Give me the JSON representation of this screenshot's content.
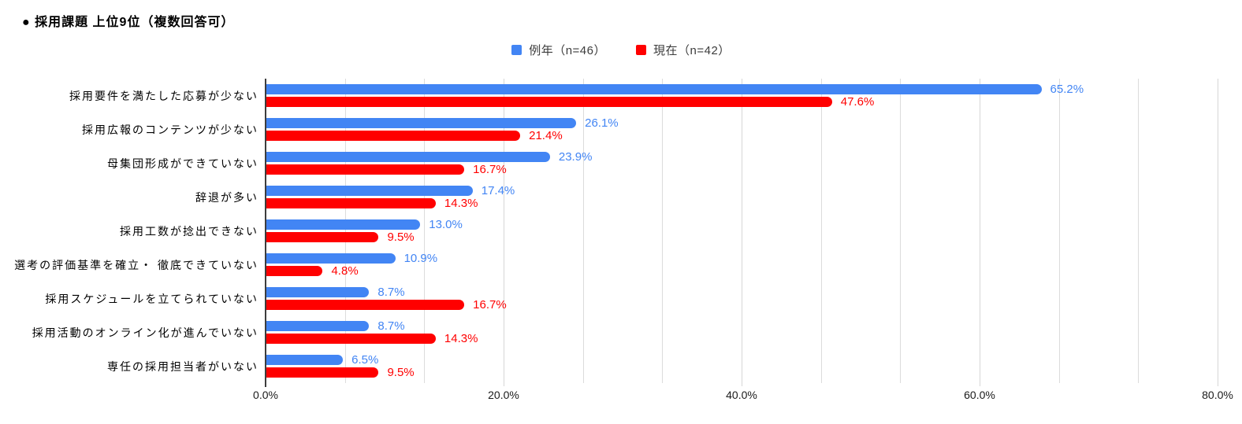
{
  "title": "● 採用課題 上位9位（複数回答可）",
  "legend": [
    {
      "label": "例年（n=46）",
      "color": "#4285F4"
    },
    {
      "label": "現在（n=42）",
      "color": "#FF0000"
    }
  ],
  "chart_data": {
    "type": "bar",
    "orientation": "horizontal",
    "title": "採用課題 上位9位（複数回答可）",
    "categories": [
      "採用要件を満たした応募が少ない",
      "採用広報のコンテンツが少ない",
      "母集団形成ができていない",
      "辞退が多い",
      "採用工数が捻出できない",
      "選考の評価基準を確立・ 徹底できていない",
      "採用スケジュールを立てられていない",
      "採用活動のオンライン化が進んでいない",
      "専任の採用担当者がいない"
    ],
    "series": [
      {
        "name": "例年（n=46）",
        "color": "#4285F4",
        "values": [
          65.2,
          26.1,
          23.9,
          17.4,
          13.0,
          10.9,
          8.7,
          8.7,
          6.5
        ]
      },
      {
        "name": "現在（n=42）",
        "color": "#FF0000",
        "values": [
          47.6,
          21.4,
          16.7,
          14.3,
          9.5,
          4.8,
          16.7,
          14.3,
          9.5
        ]
      }
    ],
    "xlabel": "",
    "ylabel": "",
    "xlim": [
      0,
      80
    ],
    "x_ticks": [
      "0.0%",
      "20.0%",
      "40.0%",
      "60.0%",
      "80.0%"
    ],
    "minor_grid_intervals": 12,
    "grid": "on",
    "legend_position": "top",
    "value_suffix": "%"
  }
}
